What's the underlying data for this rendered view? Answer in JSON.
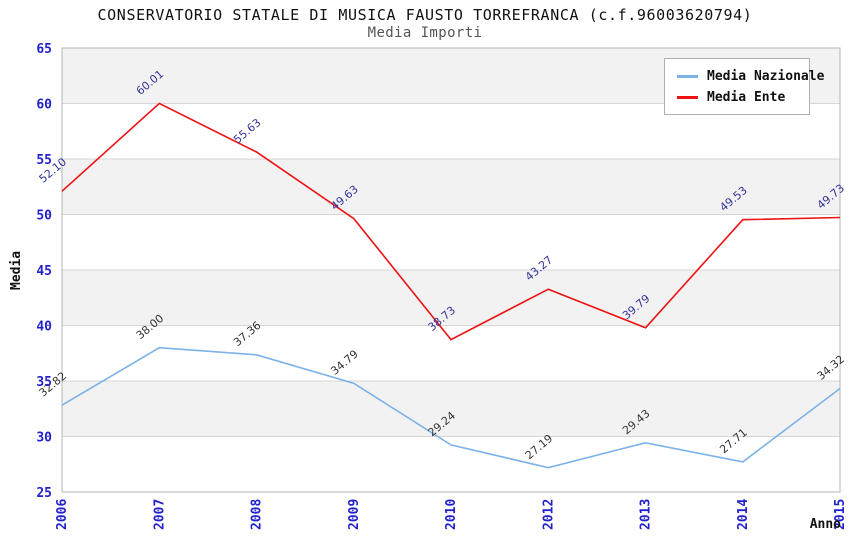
{
  "header": {
    "title": "CONSERVATORIO STATALE DI MUSICA FAUSTO TORREFRANCA (c.f.96003620794)",
    "subtitle": "Media Importi"
  },
  "chart_data": {
    "type": "line",
    "categories": [
      "2006",
      "2007",
      "2008",
      "2009",
      "2010",
      "2012",
      "2013",
      "2014",
      "2015"
    ],
    "series": [
      {
        "name": "Media Nazionale",
        "color": "#7cb2e8",
        "label_color": "#333333",
        "values": [
          32.82,
          38.0,
          37.36,
          34.79,
          29.24,
          27.19,
          29.43,
          27.71,
          34.32
        ],
        "point_labels": [
          "32.82",
          "38.00",
          "37.36",
          "34.79",
          "29.24",
          "27.19",
          "29.43",
          "27.71",
          "34.32"
        ]
      },
      {
        "name": "Media Ente",
        "color": "#ee1111",
        "label_color": "#333399",
        "values": [
          52.1,
          60.01,
          55.63,
          49.63,
          38.73,
          43.27,
          39.79,
          49.53,
          49.73
        ],
        "point_labels": [
          "52.10",
          "60.01",
          "55.63",
          "49.63",
          "38.73",
          "43.27",
          "39.79",
          "49.53",
          "49.73"
        ]
      }
    ],
    "xlabel": "Anno",
    "ylabel": "Media",
    "ylim": [
      25,
      65
    ],
    "ytick_step": 5,
    "yticks": [
      "65",
      "60",
      "55",
      "50",
      "45",
      "40",
      "35",
      "30",
      "25"
    ],
    "grid": true,
    "legend_position": "top-right",
    "axis_tick_color": "#2222cc",
    "band_color": "#f2f2f2",
    "gridline_color": "#d6d6d6",
    "plot_border_color": "#b4b4b4"
  }
}
